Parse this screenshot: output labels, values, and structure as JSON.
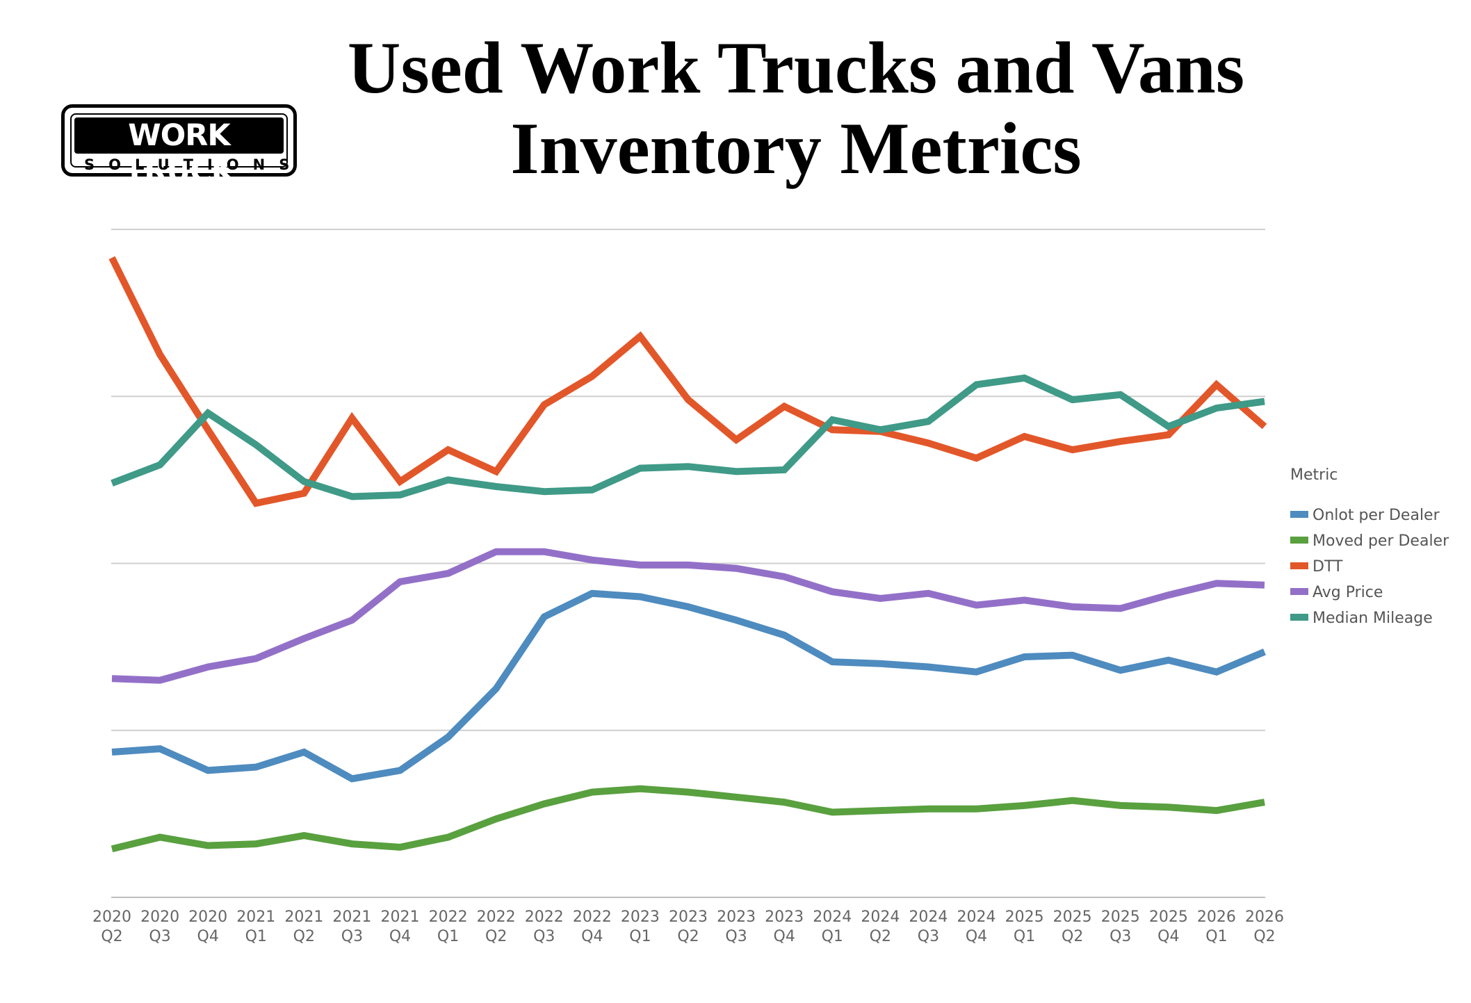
{
  "logo": {
    "line1": "WORK TRUCK",
    "line2": "SOLUTIONS"
  },
  "chart_data": {
    "type": "line",
    "title": "Used Work Trucks and Vans Inventory Metrics",
    "xlabel": "",
    "ylabel": "",
    "ylim": [
      0,
      4
    ],
    "grid": true,
    "legend_title": "Metric",
    "legend_position": "right",
    "categories": [
      [
        "2020",
        "Q2"
      ],
      [
        "2020",
        "Q3"
      ],
      [
        "2020",
        "Q4"
      ],
      [
        "2021",
        "Q1"
      ],
      [
        "2021",
        "Q2"
      ],
      [
        "2021",
        "Q3"
      ],
      [
        "2021",
        "Q4"
      ],
      [
        "2022",
        "Q1"
      ],
      [
        "2022",
        "Q2"
      ],
      [
        "2022",
        "Q3"
      ],
      [
        "2022",
        "Q4"
      ],
      [
        "2023",
        "Q1"
      ],
      [
        "2023",
        "Q2"
      ],
      [
        "2023",
        "Q3"
      ],
      [
        "2023",
        "Q4"
      ],
      [
        "2024",
        "Q1"
      ],
      [
        "2024",
        "Q2"
      ],
      [
        "2024",
        "Q3"
      ],
      [
        "2024",
        "Q4"
      ],
      [
        "2025",
        "Q1"
      ],
      [
        "2025",
        "Q2"
      ],
      [
        "2025",
        "Q3"
      ],
      [
        "2025",
        "Q4"
      ],
      [
        "2026",
        "Q1"
      ],
      [
        "2026",
        "Q2"
      ]
    ],
    "series": [
      {
        "name": "Onlot per Dealer",
        "color": "#4E8BBF",
        "values": [
          0.87,
          0.89,
          0.76,
          0.78,
          0.87,
          0.71,
          0.76,
          0.96,
          1.25,
          1.68,
          1.82,
          1.8,
          1.74,
          1.66,
          1.57,
          1.41,
          1.4,
          1.38,
          1.35,
          1.44,
          1.45,
          1.36,
          1.42,
          1.35,
          1.47
        ]
      },
      {
        "name": "Moved per Dealer",
        "color": "#59A03F",
        "values": [
          0.29,
          0.36,
          0.31,
          0.32,
          0.37,
          0.32,
          0.3,
          0.36,
          0.47,
          0.56,
          0.63,
          0.65,
          0.63,
          0.6,
          0.57,
          0.51,
          0.52,
          0.53,
          0.53,
          0.55,
          0.58,
          0.55,
          0.54,
          0.52,
          0.57
        ]
      },
      {
        "name": "DTT",
        "color": "#E2572A",
        "values": [
          3.83,
          3.25,
          2.8,
          2.36,
          2.42,
          2.87,
          2.49,
          2.68,
          2.55,
          2.95,
          3.12,
          3.36,
          2.98,
          2.74,
          2.94,
          2.8,
          2.79,
          2.72,
          2.63,
          2.76,
          2.68,
          2.73,
          2.77,
          3.07,
          2.82
        ]
      },
      {
        "name": "Avg Price",
        "color": "#9370C8",
        "values": [
          1.31,
          1.3,
          1.38,
          1.43,
          1.55,
          1.66,
          1.89,
          1.94,
          2.07,
          2.07,
          2.02,
          1.99,
          1.99,
          1.97,
          1.92,
          1.83,
          1.79,
          1.82,
          1.75,
          1.78,
          1.74,
          1.73,
          1.81,
          1.88,
          1.87
        ]
      },
      {
        "name": "Median Mileage",
        "color": "#3F9A87",
        "values": [
          2.48,
          2.59,
          2.9,
          2.71,
          2.49,
          2.4,
          2.41,
          2.5,
          2.46,
          2.43,
          2.44,
          2.57,
          2.58,
          2.55,
          2.56,
          2.86,
          2.8,
          2.85,
          3.07,
          3.11,
          2.98,
          3.01,
          2.82,
          2.93,
          2.97
        ]
      }
    ]
  }
}
